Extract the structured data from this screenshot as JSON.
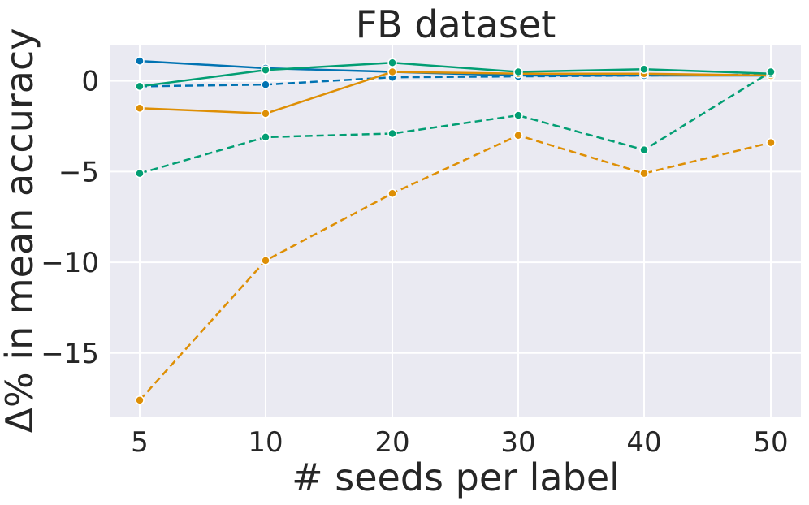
{
  "chart_data": {
    "type": "line",
    "title": "FB dataset",
    "xlabel": "# seeds per label",
    "ylabel": "Δ% in mean accuracy",
    "x": [
      "5",
      "10",
      "20",
      "30",
      "40",
      "50"
    ],
    "x_tick_labels": [
      "5",
      "10",
      "20",
      "30",
      "40",
      "50"
    ],
    "y_ticks": [
      0,
      -5,
      -10,
      -15
    ],
    "y_tick_labels": [
      "0",
      "−5",
      "−10",
      "−15"
    ],
    "ylim": [
      -18.5,
      2.0
    ],
    "grid": true,
    "background_color": "#eaeaf2",
    "series": [
      {
        "color": "#0173b2",
        "dashed": false,
        "values": [
          1.1,
          0.7,
          0.5,
          0.3,
          0.3,
          0.3
        ]
      },
      {
        "color": "#0173b2",
        "dashed": true,
        "values": [
          -0.3,
          -0.2,
          0.2,
          0.25,
          0.3,
          0.35
        ]
      },
      {
        "color": "#de8f05",
        "dashed": false,
        "values": [
          -1.5,
          -1.8,
          0.5,
          0.4,
          0.4,
          0.3
        ]
      },
      {
        "color": "#de8f05",
        "dashed": true,
        "values": [
          -17.6,
          -9.9,
          -6.2,
          -3.0,
          -5.1,
          -3.4
        ]
      },
      {
        "color": "#029e73",
        "dashed": false,
        "values": [
          -0.3,
          0.6,
          1.0,
          0.5,
          0.65,
          0.4
        ]
      },
      {
        "color": "#029e73",
        "dashed": true,
        "values": [
          -5.1,
          -3.1,
          -2.9,
          -1.9,
          -3.8,
          0.5
        ]
      }
    ]
  }
}
